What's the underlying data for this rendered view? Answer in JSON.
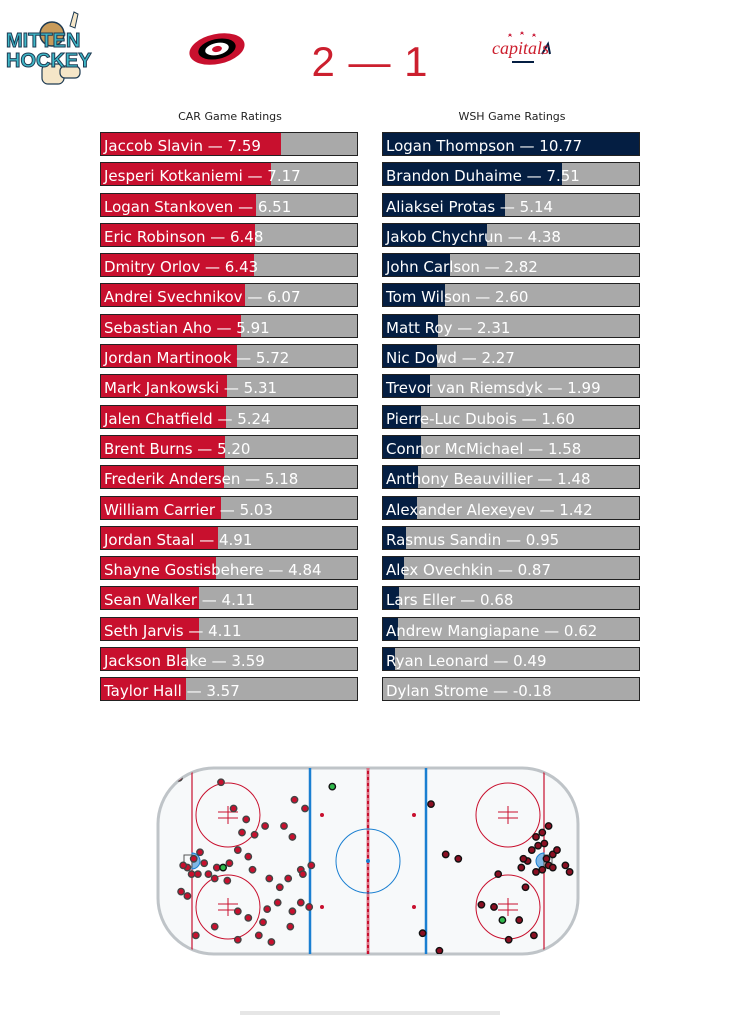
{
  "brand": {
    "logo_top": "MITTEN",
    "logo_bottom": "HOCKEY"
  },
  "game": {
    "score": "2 — 1",
    "home_logo": "hurricanes-logo",
    "away_logo": "capitals-logo",
    "away_logo_text": "capitals"
  },
  "colors": {
    "car": "#c8102e",
    "wsh": "#041e42",
    "empty": "#a9a9a9"
  },
  "chart_data": [
    {
      "type": "bar",
      "title": "CAR Game Ratings",
      "players": [
        {
          "name": "Jaccob Slavin",
          "value": 7.59
        },
        {
          "name": "Jesperi Kotkaniemi",
          "value": 7.17
        },
        {
          "name": "Logan Stankoven",
          "value": 6.51
        },
        {
          "name": "Eric Robinson",
          "value": 6.48
        },
        {
          "name": "Dmitry Orlov",
          "value": 6.43
        },
        {
          "name": "Andrei Svechnikov",
          "value": 6.07
        },
        {
          "name": "Sebastian Aho",
          "value": 5.91
        },
        {
          "name": "Jordan Martinook",
          "value": 5.72
        },
        {
          "name": "Mark Jankowski",
          "value": 5.31
        },
        {
          "name": "Jalen Chatfield",
          "value": 5.24
        },
        {
          "name": "Brent Burns",
          "value": 5.2
        },
        {
          "name": "Frederik Andersen",
          "value": 5.18
        },
        {
          "name": "William Carrier",
          "value": 5.03
        },
        {
          "name": "Jordan Staal",
          "value": 4.91
        },
        {
          "name": "Shayne Gostisbehere",
          "value": 4.84
        },
        {
          "name": "Sean Walker",
          "value": 4.11
        },
        {
          "name": "Seth Jarvis",
          "value": 4.11
        },
        {
          "name": "Jackson Blake",
          "value": 3.59
        },
        {
          "name": "Taylor Hall",
          "value": 3.57
        }
      ],
      "labels": [
        "Jaccob Slavin — 7.59",
        "Jesperi Kotkaniemi — 7.17",
        "Logan Stankoven — 6.51",
        "Eric Robinson — 6.48",
        "Dmitry Orlov — 6.43",
        "Andrei Svechnikov — 6.07",
        "Sebastian Aho — 5.91",
        "Jordan Martinook — 5.72",
        "Mark Jankowski — 5.31",
        "Jalen Chatfield — 5.24",
        "Brent Burns — 5.20",
        "Frederik Andersen — 5.18",
        "William Carrier — 5.03",
        "Jordan Staal — 4.91",
        "Shayne Gostisbehere — 4.84",
        "Sean Walker — 4.11",
        "Seth Jarvis — 4.11",
        "Jackson Blake — 3.59",
        "Taylor Hall — 3.57"
      ],
      "xlim": [
        0,
        10.77
      ]
    },
    {
      "type": "bar",
      "title": "WSH Game Ratings",
      "players": [
        {
          "name": "Logan Thompson",
          "value": 10.77
        },
        {
          "name": "Brandon Duhaime",
          "value": 7.51
        },
        {
          "name": "Aliaksei Protas",
          "value": 5.14
        },
        {
          "name": "Jakob Chychrun",
          "value": 4.38
        },
        {
          "name": "John Carlson",
          "value": 2.82
        },
        {
          "name": "Tom Wilson",
          "value": 2.6
        },
        {
          "name": "Matt Roy",
          "value": 2.31
        },
        {
          "name": "Nic Dowd",
          "value": 2.27
        },
        {
          "name": "Trevor van Riemsdyk",
          "value": 1.99
        },
        {
          "name": "Pierre-Luc Dubois",
          "value": 1.6
        },
        {
          "name": "Connor McMichael",
          "value": 1.58
        },
        {
          "name": "Anthony Beauvillier",
          "value": 1.48
        },
        {
          "name": "Alexander Alexeyev",
          "value": 1.42
        },
        {
          "name": "Rasmus Sandin",
          "value": 0.95
        },
        {
          "name": "Alex Ovechkin",
          "value": 0.87
        },
        {
          "name": "Lars Eller",
          "value": 0.68
        },
        {
          "name": "Andrew Mangiapane",
          "value": 0.62
        },
        {
          "name": "Ryan Leonard",
          "value": 0.49
        },
        {
          "name": "Dylan Strome",
          "value": -0.18
        }
      ],
      "labels": [
        "Logan Thompson — 10.77",
        "Brandon Duhaime — 7.51",
        "Aliaksei Protas — 5.14",
        "Jakob Chychrun — 4.38",
        "John Carlson — 2.82",
        "Tom Wilson — 2.60",
        "Matt Roy — 2.31",
        "Nic Dowd — 2.27",
        "Trevor van Riemsdyk — 1.99",
        "Pierre-Luc Dubois — 1.60",
        "Connor McMichael — 1.58",
        "Anthony Beauvillier — 1.48",
        "Alexander Alexeyev — 1.42",
        "Rasmus Sandin — 0.95",
        "Alex Ovechkin — 0.87",
        "Lars Eller — 0.68",
        "Andrew Mangiapane — 0.62",
        "Ryan Leonard — 0.49",
        "Dylan Strome — -0.18"
      ],
      "xlim": [
        0,
        10.77
      ]
    },
    {
      "type": "scatter",
      "description_of_markers": "shots plotted on rink, x in feet (-100..100), y in feet (-42.5..42.5)",
      "car_shots": [
        [
          -90,
          38
        ],
        [
          -70,
          36
        ],
        [
          -64,
          24
        ],
        [
          -58,
          19
        ],
        [
          -60,
          13
        ],
        [
          -54,
          12
        ],
        [
          -49,
          16
        ],
        [
          -40,
          16
        ],
        [
          -36,
          11
        ],
        [
          -62,
          5
        ],
        [
          -57,
          2
        ],
        [
          -66,
          -1
        ],
        [
          -78,
          -1
        ],
        [
          -80,
          4
        ],
        [
          -83,
          1
        ],
        [
          -86,
          -3
        ],
        [
          -88,
          -2
        ],
        [
          -84,
          -6
        ],
        [
          -81,
          -6
        ],
        [
          -76,
          -6
        ],
        [
          -72,
          -3
        ],
        [
          -73,
          -8
        ],
        [
          -67,
          -9
        ],
        [
          -55,
          -4
        ],
        [
          -47,
          -8
        ],
        [
          -38,
          -8
        ],
        [
          -32,
          -4
        ],
        [
          -43,
          -19
        ],
        [
          -48,
          -22
        ],
        [
          -62,
          -23
        ],
        [
          -57,
          -26
        ],
        [
          -50,
          -28
        ],
        [
          -36,
          -23
        ],
        [
          -32,
          -19
        ],
        [
          -28,
          -21
        ],
        [
          -37,
          -30
        ],
        [
          -52,
          -34
        ],
        [
          -62,
          -36
        ],
        [
          -46,
          -37
        ],
        [
          -73,
          -30
        ],
        [
          -82,
          -34
        ],
        [
          -86,
          -16
        ],
        [
          -89,
          -14
        ],
        [
          -27,
          -2
        ],
        [
          -31,
          -6
        ],
        [
          -42,
          -12
        ],
        [
          -30,
          24
        ],
        [
          -35,
          28
        ]
      ],
      "car_goals": [
        [
          -17,
          34
        ],
        [
          -69,
          -3
        ]
      ],
      "wsh_shots": [
        [
          30,
          26
        ],
        [
          37,
          3
        ],
        [
          43,
          1
        ],
        [
          60,
          -21
        ],
        [
          54,
          -20
        ],
        [
          62,
          -6
        ],
        [
          72,
          -27
        ],
        [
          79,
          -34
        ],
        [
          67,
          -36
        ],
        [
          80,
          -5
        ],
        [
          83,
          -4
        ],
        [
          86,
          -2
        ],
        [
          85,
          1
        ],
        [
          88,
          3
        ],
        [
          90,
          5
        ],
        [
          84,
          8
        ],
        [
          81,
          7
        ],
        [
          78,
          5
        ],
        [
          76,
          0
        ],
        [
          73,
          -3
        ],
        [
          74,
          1
        ],
        [
          80,
          11
        ],
        [
          83,
          13
        ],
        [
          86,
          16
        ],
        [
          88,
          -3
        ],
        [
          96,
          -5
        ],
        [
          94,
          -2
        ],
        [
          75,
          -12
        ],
        [
          26,
          -33
        ],
        [
          34,
          -41
        ]
      ],
      "wsh_goals": [
        [
          64,
          -27
        ]
      ]
    }
  ]
}
